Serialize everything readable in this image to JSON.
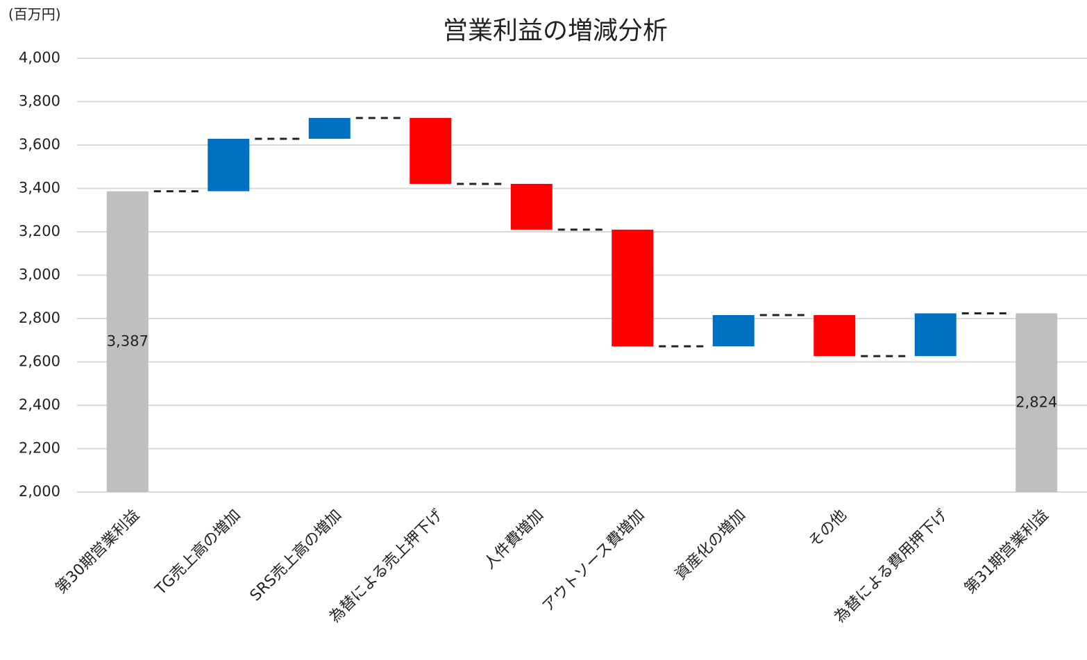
{
  "chart_data": {
    "type": "waterfall",
    "title": "営業利益の増減分析",
    "unit_label": "(百万円)",
    "categories": [
      "第30期営業利益",
      "TG売上高の増加",
      "SRS売上高の増加",
      "為替による売上押下げ",
      "人件費増加",
      "アウトソース費増加",
      "資産化の増加",
      "その他",
      "為替による費用押下げ",
      "第31期営業利益"
    ],
    "values": [
      3387,
      242,
      96,
      -304,
      -211,
      -538,
      144,
      -189,
      197,
      2824
    ],
    "measure": [
      "absolute",
      "relative",
      "relative",
      "relative",
      "relative",
      "relative",
      "relative",
      "relative",
      "relative",
      "total"
    ],
    "value_labels": [
      "3,387",
      null,
      null,
      null,
      null,
      null,
      null,
      null,
      null,
      "2,824"
    ],
    "colors": {
      "increase": "#0070c0",
      "decrease": "#ff0000",
      "total": "#bfbfbf"
    },
    "ylim": [
      2000,
      4000
    ],
    "yticks": [
      {
        "value": 2000,
        "label": "2,000"
      },
      {
        "value": 2200,
        "label": "2,200"
      },
      {
        "value": 2400,
        "label": "2,400"
      },
      {
        "value": 2600,
        "label": "2,600"
      },
      {
        "value": 2800,
        "label": "2,800"
      },
      {
        "value": 3000,
        "label": "3,000"
      },
      {
        "value": 3200,
        "label": "3,200"
      },
      {
        "value": 3400,
        "label": "3,400"
      },
      {
        "value": 3600,
        "label": "3,600"
      },
      {
        "value": 3800,
        "label": "3,800"
      },
      {
        "value": 4000,
        "label": "4,000"
      }
    ],
    "grid": true
  }
}
